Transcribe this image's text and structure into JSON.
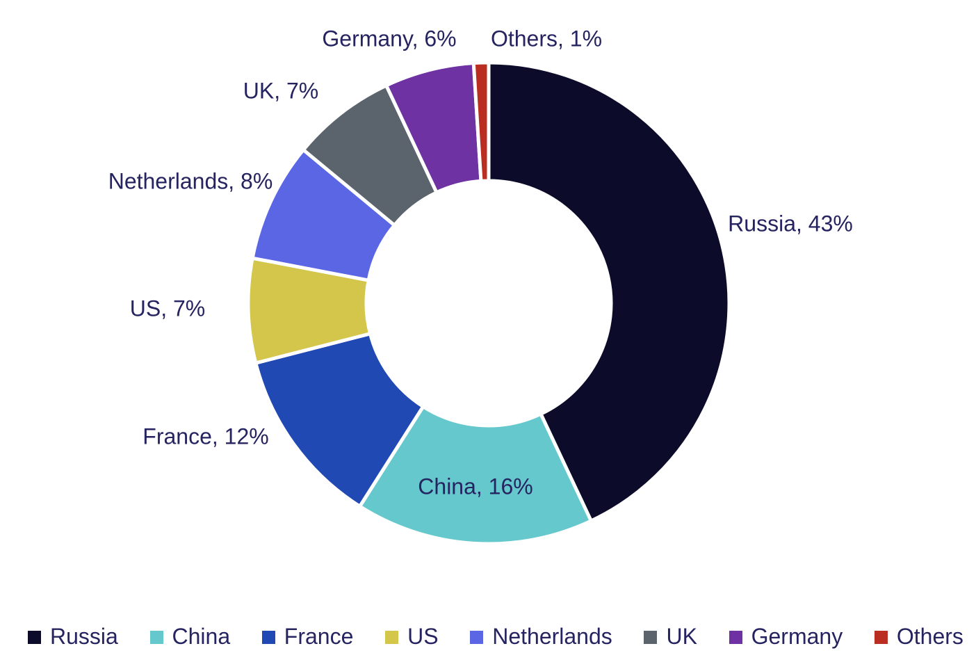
{
  "chart_data": {
    "type": "pie",
    "subtype": "donut",
    "title": "",
    "unit": "%",
    "direction": "clockwise",
    "start_angle_deg": 0,
    "legend_position": "bottom",
    "categories": [
      "Russia",
      "China",
      "France",
      "US",
      "Netherlands",
      "UK",
      "Germany",
      "Others"
    ],
    "values": [
      43,
      16,
      12,
      7,
      8,
      7,
      6,
      1
    ],
    "slices": [
      {
        "label": "Russia",
        "value": 43,
        "color": "#0c0b2a",
        "callout": "Russia, 43%"
      },
      {
        "label": "China",
        "value": 16,
        "color": "#64c8cd",
        "callout": "China, 16%"
      },
      {
        "label": "France",
        "value": 12,
        "color": "#2149b4",
        "callout": "France, 12%"
      },
      {
        "label": "US",
        "value": 7,
        "color": "#d4c54b",
        "callout": "US, 7%"
      },
      {
        "label": "Netherlands",
        "value": 8,
        "color": "#5a66e4",
        "callout": "Netherlands, 8%"
      },
      {
        "label": "UK",
        "value": 7,
        "color": "#5b636d",
        "callout": "UK, 7%"
      },
      {
        "label": "Germany",
        "value": 6,
        "color": "#6e32a2",
        "callout": "Germany, 6%"
      },
      {
        "label": "Others",
        "value": 1,
        "color": "#b92e20",
        "callout": "Others, 1%"
      }
    ]
  },
  "colors": {
    "background": "#ffffff",
    "label_text": "#262460",
    "slice_border": "#ffffff"
  }
}
